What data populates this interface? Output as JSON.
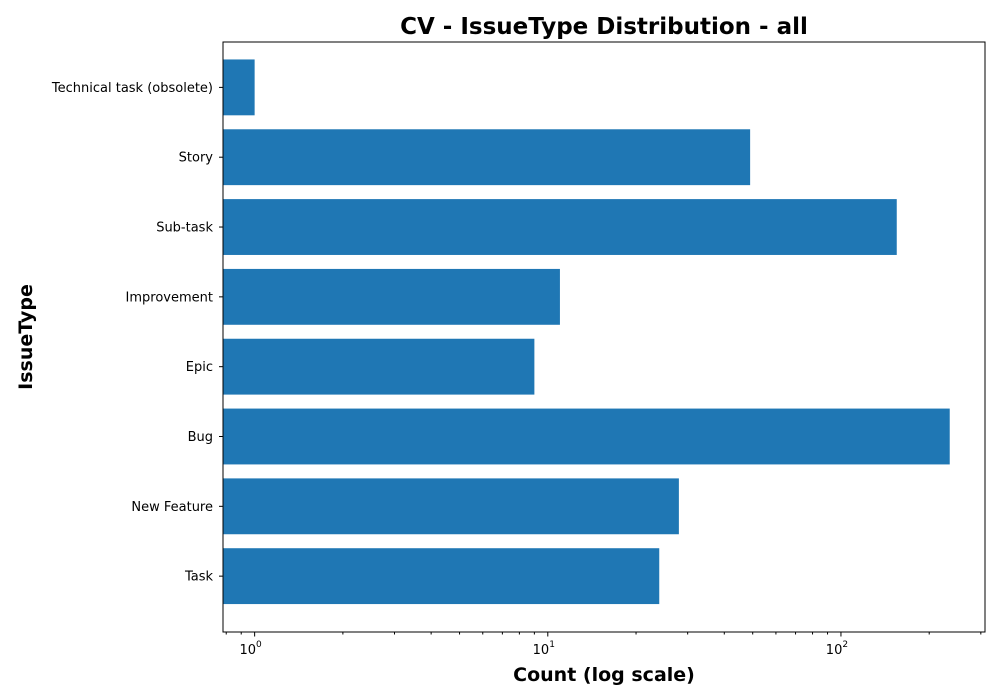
{
  "chart_data": {
    "type": "bar",
    "orientation": "horizontal",
    "title": "CV - IssueType Distribution - all",
    "xlabel": "Count (log scale)",
    "ylabel": "IssueType",
    "x_scale": "log",
    "xlim": [
      0.78,
      310
    ],
    "categories": [
      "Task",
      "New Feature",
      "Bug",
      "Epic",
      "Improvement",
      "Sub-task",
      "Story",
      "Technical task (obsolete)"
    ],
    "values": [
      24,
      28,
      235,
      9,
      11,
      155,
      49,
      1
    ],
    "x_ticks": [
      {
        "base": "10",
        "exp": "0",
        "value": 1
      },
      {
        "base": "10",
        "exp": "1",
        "value": 10
      },
      {
        "base": "10",
        "exp": "2",
        "value": 100
      }
    ],
    "bar_color": "#1f77b4",
    "grid": false,
    "legend": "none"
  }
}
